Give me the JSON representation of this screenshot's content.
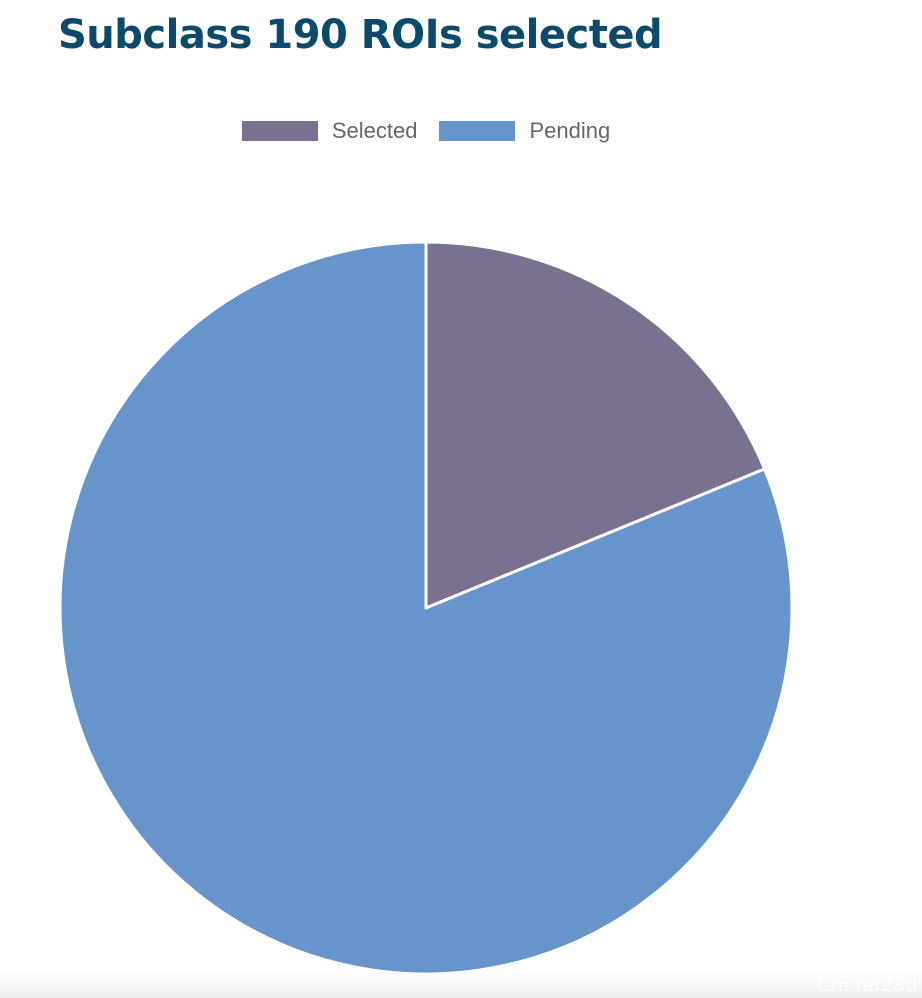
{
  "chart_data": {
    "type": "pie",
    "title": "Subclass 190 ROIs selected",
    "legend_position": "top",
    "categories": [
      "Selected",
      "Pending"
    ],
    "values": [
      18.8,
      81.2
    ],
    "colors": [
      "#79718f",
      "#6794ca"
    ]
  },
  "watermark": "Chi na2au"
}
